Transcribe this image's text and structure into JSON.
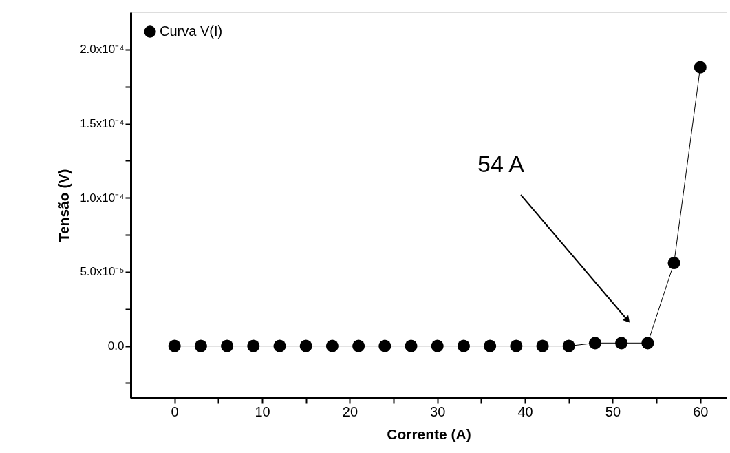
{
  "chart_data": {
    "type": "line",
    "xlabel": "Corrente (A)",
    "ylabel": "Tensão (V)",
    "x": [
      0,
      3,
      6,
      9,
      12,
      15,
      18,
      21,
      24,
      27,
      30,
      33,
      36,
      39,
      42,
      45,
      48,
      51,
      54,
      57,
      60
    ],
    "series": [
      {
        "name": "Curva V(I)",
        "color": "#000000",
        "values": [
          0,
          0,
          0,
          0,
          0,
          0,
          0,
          0,
          0,
          0,
          0,
          0,
          0,
          0,
          0,
          0,
          2e-06,
          2e-06,
          2e-06,
          5.6e-05,
          0.000188
        ]
      }
    ],
    "xlim": [
      -5,
      63
    ],
    "ylim": [
      -3.5e-05,
      0.000225
    ],
    "xticks": [
      0,
      {
        "value": 5,
        "label": null
      },
      10,
      {
        "value": 15,
        "label": null
      },
      20,
      {
        "value": 25,
        "label": null
      },
      30,
      {
        "value": 35,
        "label": null
      },
      40,
      {
        "value": 45,
        "label": null
      },
      50,
      {
        "value": 55,
        "label": null
      },
      60
    ],
    "yticks": [
      {
        "value": -2.5e-05,
        "label": null
      },
      {
        "value": 0,
        "label": "0.0"
      },
      {
        "value": 2.5e-05,
        "label": null
      },
      {
        "value": 5e-05,
        "label": "5.0x10⁻⁵"
      },
      {
        "value": 7.5e-05,
        "label": null
      },
      {
        "value": 0.0001,
        "label": "1.0x10⁻⁴"
      },
      {
        "value": 0.000125,
        "label": null
      },
      {
        "value": 0.00015,
        "label": "1.5x10⁻⁴"
      },
      {
        "value": 0.000175,
        "label": null
      },
      {
        "value": 0.0002,
        "label": "2.0x10⁻⁴"
      }
    ],
    "annotations": [
      "54 A"
    ],
    "marker": "circle",
    "line_style": "solid",
    "legend": "top left",
    "grid": false
  }
}
